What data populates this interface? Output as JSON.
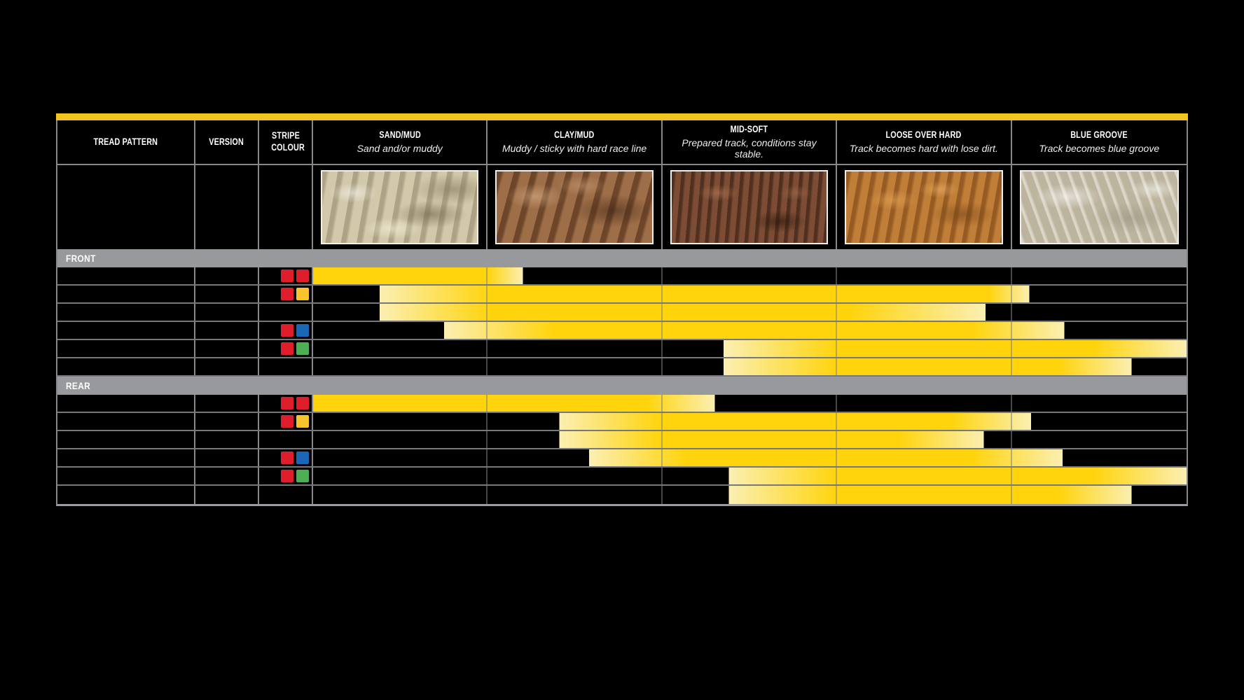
{
  "chart_data": {
    "type": "range-bar",
    "columns": [
      {
        "label": "TREAD PATTERN"
      },
      {
        "label": "VERSION"
      },
      {
        "label": "STRIPE COLOUR"
      }
    ],
    "terrains": [
      {
        "label": "SAND/MUD",
        "subtitle": "Sand and/or muddy",
        "texture": "sand"
      },
      {
        "label": "CLAY/MUD",
        "subtitle": "Muddy / sticky with hard race line",
        "texture": "clay"
      },
      {
        "label": "MID-SOFT",
        "subtitle": "Prepared track, conditions stay stable.",
        "texture": "midsoft"
      },
      {
        "label": "LOOSE OVER HARD",
        "subtitle": "Track becomes hard with lose dirt.",
        "texture": "loose"
      },
      {
        "label": "BLUE GROOVE",
        "subtitle": "Track becomes blue groove",
        "texture": "blue"
      }
    ],
    "axis": {
      "min_pct": 0,
      "max_pct": 100,
      "note": "bar positions are % across the five terrain columns; each terrain column spans 20%. full_start/full_end mark the solid-yellow core; start/end mark the pale fade limits."
    },
    "sections": [
      {
        "label": "FRONT",
        "rows": [
          {
            "stripes": [
              "red",
              "red"
            ],
            "range": {
              "start": 0,
              "full_start": 0,
              "full_end": 20,
              "end": 24
            }
          },
          {
            "stripes": [
              "red",
              "yellow"
            ],
            "range": {
              "start": 7.6,
              "full_start": 20.4,
              "full_end": 77.4,
              "end": 82
            }
          },
          {
            "stripes": [],
            "range": {
              "start": 7.6,
              "full_start": 20.4,
              "full_end": 61.6,
              "end": 77
            }
          },
          {
            "stripes": [
              "red",
              "blue"
            ],
            "range": {
              "start": 15,
              "full_start": 27.6,
              "full_end": 75.5,
              "end": 86
            }
          },
          {
            "stripes": [
              "red",
              "green"
            ],
            "range": {
              "start": 47,
              "full_start": 60,
              "full_end": 89.4,
              "end": 100
            }
          },
          {
            "stripes": [],
            "range": {
              "start": 47,
              "full_start": 60,
              "full_end": 85.4,
              "end": 93.7
            }
          }
        ]
      },
      {
        "label": "REAR",
        "rows": [
          {
            "stripes": [
              "red",
              "red"
            ],
            "range": {
              "start": 0,
              "full_start": 0,
              "full_end": 38.2,
              "end": 46
            }
          },
          {
            "stripes": [
              "red",
              "yellow"
            ],
            "range": {
              "start": 28.2,
              "full_start": 39.8,
              "full_end": 73.1,
              "end": 82.2
            }
          },
          {
            "stripes": [],
            "range": {
              "start": 28.2,
              "full_start": 39.8,
              "full_end": 67.1,
              "end": 76.8
            }
          },
          {
            "stripes": [
              "red",
              "blue"
            ],
            "range": {
              "start": 31.6,
              "full_start": 42.8,
              "full_end": 75.5,
              "end": 85.8
            }
          },
          {
            "stripes": [
              "red",
              "green"
            ],
            "range": {
              "start": 47.6,
              "full_start": 60,
              "full_end": 89.4,
              "end": 100
            }
          },
          {
            "stripes": [],
            "range": {
              "start": 47.6,
              "full_start": 60,
              "full_end": 85.4,
              "end": 93.7
            }
          }
        ]
      }
    ],
    "colors": {
      "accent_yellow": "#F1C51E",
      "bar_bright": "#FFD40D",
      "bar_pale": "#FBEFB2",
      "section_bar": "#97999D",
      "grid_line": "#85878B",
      "row_line": "#76787C",
      "stripes": {
        "red": "#DE1F2B",
        "yellow": "#F6C42C",
        "blue": "#1B66B5",
        "green": "#4EAE53"
      }
    }
  }
}
